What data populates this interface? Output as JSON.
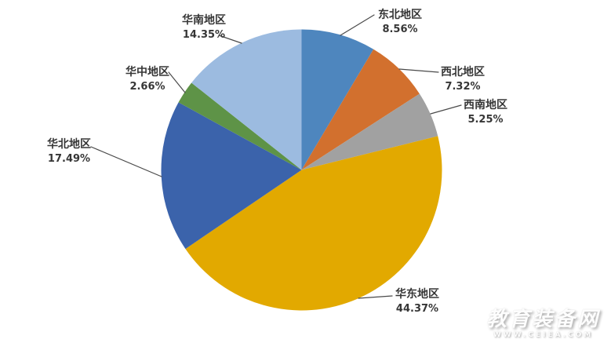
{
  "chart_data": {
    "type": "pie",
    "title": "",
    "unit": "percent",
    "total": 100,
    "start_angle_deg": 0,
    "direction": "clockwise",
    "labels_style": "outside with leader lines (category name + percentage)",
    "legend": "none",
    "slices": [
      {
        "label": "东北地区",
        "value": 8.56,
        "pct_label": "8.56%",
        "color": "#4E86BE"
      },
      {
        "label": "西北地区",
        "value": 7.32,
        "pct_label": "7.32%",
        "color": "#D2702E"
      },
      {
        "label": "西南地区",
        "value": 5.25,
        "pct_label": "5.25%",
        "color": "#A1A1A1"
      },
      {
        "label": "华东地区",
        "value": 44.37,
        "pct_label": "44.37%",
        "color": "#E2A900"
      },
      {
        "label": "华北地区",
        "value": 17.49,
        "pct_label": "17.49%",
        "color": "#3B63AB"
      },
      {
        "label": "华中地区",
        "value": 2.66,
        "pct_label": "2.66%",
        "color": "#5E9347"
      },
      {
        "label": "华南地区",
        "value": 14.35,
        "pct_label": "14.35%",
        "color": "#9CBBE0"
      }
    ]
  },
  "watermark": {
    "site_name": "教育装备网",
    "site_url": "WWW.CEIEA.COM"
  }
}
